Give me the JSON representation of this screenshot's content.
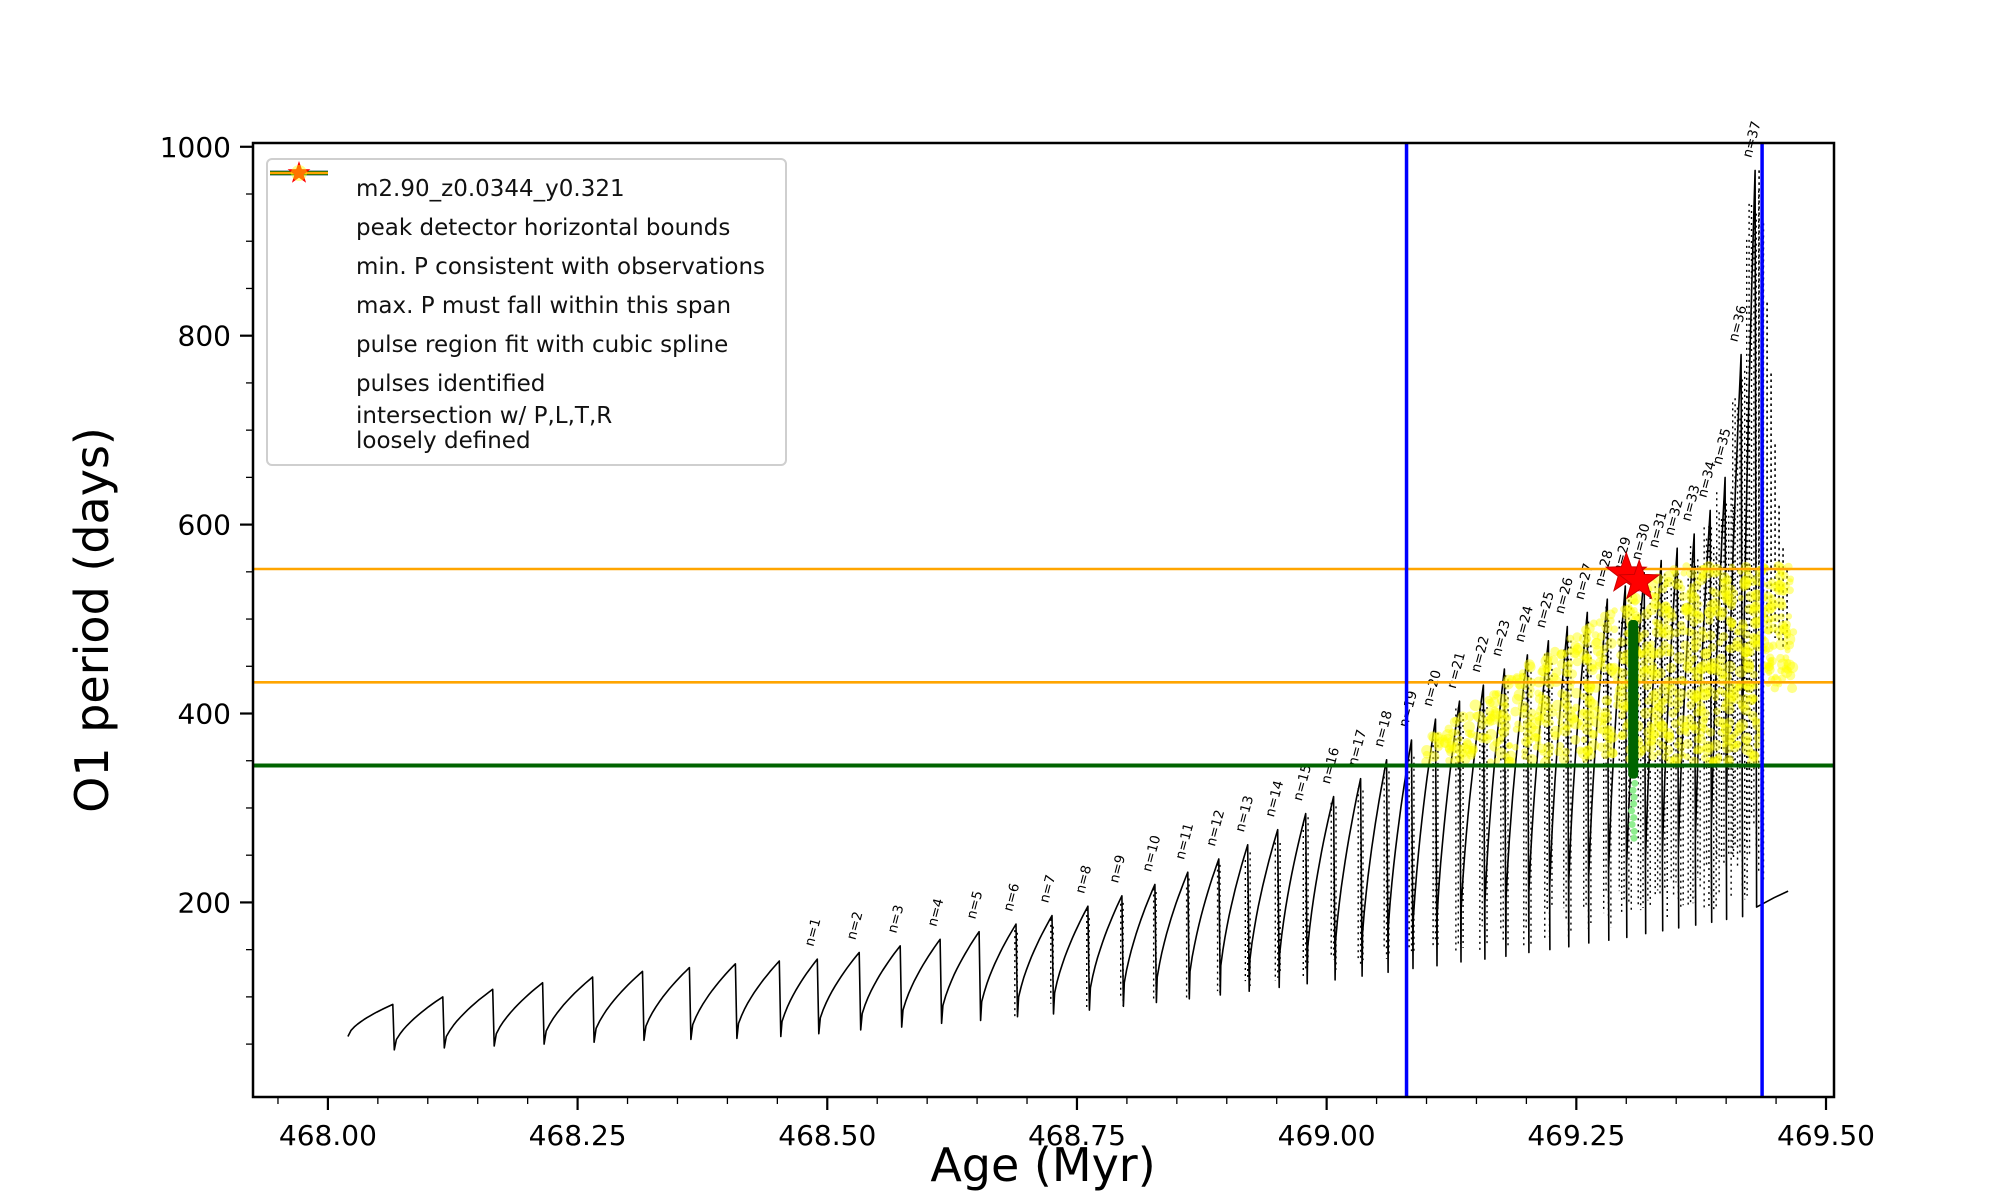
{
  "axes": {
    "xlabel": "Age (Myr)",
    "ylabel": "O1 period (days)",
    "xlim": [
      467.925,
      469.508
    ],
    "ylim": [
      -6,
      1004
    ],
    "x_ticks": [
      {
        "v": 468.0,
        "label": "468.00"
      },
      {
        "v": 468.25,
        "label": "468.25"
      },
      {
        "v": 468.5,
        "label": "468.50"
      },
      {
        "v": 468.75,
        "label": "468.75"
      },
      {
        "v": 469.0,
        "label": "469.00"
      },
      {
        "v": 469.25,
        "label": "469.25"
      },
      {
        "v": 469.5,
        "label": "469.50"
      }
    ],
    "y_ticks": [
      {
        "v": 200,
        "label": "200"
      },
      {
        "v": 400,
        "label": "400"
      },
      {
        "v": 600,
        "label": "600"
      },
      {
        "v": 800,
        "label": "800"
      },
      {
        "v": 1000,
        "label": "1000"
      }
    ],
    "minor_x_step": 0.05,
    "minor_y_step": 50
  },
  "legend": {
    "entries": [
      {
        "type": "line-dot",
        "color": "#000000",
        "label": "m2.90_z0.0344_y0.321"
      },
      {
        "type": "line",
        "color": "#0000ff",
        "label": "peak detector horizontal bounds"
      },
      {
        "type": "line",
        "color": "#006400",
        "label": "min. P consistent with observations"
      },
      {
        "type": "line",
        "color": "#ffa500",
        "label": "max. P must fall within this span"
      },
      {
        "type": "dot",
        "color": "#90ee90",
        "label": "pulse region fit with cubic spline"
      },
      {
        "type": "star",
        "color": "#ff0000",
        "label": "pulses identified"
      },
      {
        "type": "dot-faint",
        "color": "#ffff00",
        "label": "intersection w/ P,L,T,R",
        "label2": "loosely defined"
      }
    ]
  },
  "chart_data": {
    "type": "line",
    "title": "",
    "xlabel": "Age (Myr)",
    "ylabel": "O1 period (days)",
    "series_name": "m2.90_z0.0344_y0.321",
    "label_prefix": "n=",
    "pulses": [
      {
        "x": 468.065,
        "p": 92,
        "t": 58
      },
      {
        "x": 468.115,
        "p": 100,
        "t": 44
      },
      {
        "x": 468.165,
        "p": 108,
        "t": 46
      },
      {
        "x": 468.215,
        "p": 115,
        "t": 48
      },
      {
        "x": 468.265,
        "p": 121,
        "t": 50
      },
      {
        "x": 468.315,
        "p": 127,
        "t": 52
      },
      {
        "x": 468.362,
        "p": 131,
        "t": 54
      },
      {
        "x": 468.408,
        "p": 135,
        "t": 55
      },
      {
        "x": 468.452,
        "p": 138,
        "t": 56
      },
      {
        "n": 1,
        "x": 468.49,
        "p": 140,
        "t": 58
      },
      {
        "n": 2,
        "x": 468.532,
        "p": 147,
        "t": 61
      },
      {
        "n": 3,
        "x": 468.573,
        "p": 154,
        "t": 65
      },
      {
        "n": 4,
        "x": 468.613,
        "p": 161,
        "t": 68
      },
      {
        "n": 5,
        "x": 468.652,
        "p": 169,
        "t": 72
      },
      {
        "n": 6,
        "x": 468.689,
        "p": 177,
        "t": 75
      },
      {
        "n": 7,
        "x": 468.725,
        "p": 186,
        "t": 79
      },
      {
        "n": 8,
        "x": 468.761,
        "p": 196,
        "t": 82
      },
      {
        "n": 9,
        "x": 468.795,
        "p": 207,
        "t": 86
      },
      {
        "n": 10,
        "x": 468.828,
        "p": 219,
        "t": 90
      },
      {
        "n": 11,
        "x": 468.861,
        "p": 232,
        "t": 94
      },
      {
        "n": 12,
        "x": 468.892,
        "p": 246,
        "t": 98
      },
      {
        "n": 13,
        "x": 468.921,
        "p": 261,
        "t": 102
      },
      {
        "n": 14,
        "x": 468.951,
        "p": 277,
        "t": 106
      },
      {
        "n": 15,
        "x": 468.979,
        "p": 294,
        "t": 110
      },
      {
        "n": 16,
        "x": 469.007,
        "p": 312,
        "t": 114
      },
      {
        "n": 17,
        "x": 469.034,
        "p": 331,
        "t": 118
      },
      {
        "n": 18,
        "x": 469.06,
        "p": 351,
        "t": 122
      },
      {
        "n": 19,
        "x": 469.085,
        "p": 372,
        "t": 126
      },
      {
        "n": 20,
        "x": 469.109,
        "p": 394,
        "t": 130
      },
      {
        "n": 21,
        "x": 469.133,
        "p": 413,
        "t": 133
      },
      {
        "n": 22,
        "x": 469.157,
        "p": 430,
        "t": 137
      },
      {
        "n": 23,
        "x": 469.178,
        "p": 447,
        "t": 140
      },
      {
        "n": 24,
        "x": 469.201,
        "p": 462,
        "t": 143
      },
      {
        "n": 25,
        "x": 469.222,
        "p": 477,
        "t": 147
      },
      {
        "n": 26,
        "x": 469.241,
        "p": 492,
        "t": 150
      },
      {
        "n": 27,
        "x": 469.261,
        "p": 507,
        "t": 153
      },
      {
        "n": 28,
        "x": 469.281,
        "p": 521,
        "t": 157
      },
      {
        "n": 29,
        "x": 469.299,
        "p": 535,
        "t": 160
      },
      {
        "n": 30,
        "x": 469.318,
        "p": 549,
        "t": 163
      },
      {
        "n": 31,
        "x": 469.335,
        "p": 562,
        "t": 167
      },
      {
        "n": 32,
        "x": 469.351,
        "p": 575,
        "t": 170
      },
      {
        "n": 33,
        "x": 469.368,
        "p": 590,
        "t": 173
      },
      {
        "n": 34,
        "x": 469.384,
        "p": 615,
        "t": 176
      },
      {
        "n": 35,
        "x": 469.399,
        "p": 650,
        "t": 179
      },
      {
        "n": 36,
        "x": 469.415,
        "p": 780,
        "t": 182
      },
      {
        "n": 37,
        "x": 469.429,
        "p": 975,
        "t": 185
      }
    ],
    "tail_trough": 195,
    "tail_spikes": [
      {
        "x": 469.433,
        "top": 975,
        "bot": 520
      },
      {
        "x": 469.437,
        "top": 905,
        "bot": 500
      },
      {
        "x": 469.441,
        "top": 835,
        "bot": 490
      },
      {
        "x": 469.445,
        "top": 760,
        "bot": 485
      },
      {
        "x": 469.449,
        "top": 685,
        "bot": 480
      },
      {
        "x": 469.453,
        "top": 620,
        "bot": 475
      },
      {
        "x": 469.457,
        "top": 575,
        "bot": 468
      },
      {
        "x": 469.461,
        "top": 552,
        "bot": 470
      }
    ],
    "vlines_blue": [
      469.08,
      469.436
    ],
    "hline_green": 345,
    "hlines_orange": [
      433,
      553
    ],
    "stars": [
      {
        "x": 469.3,
        "y": 548
      },
      {
        "x": 469.313,
        "y": 540
      }
    ],
    "pulse_fit_bar": {
      "x": 469.307,
      "y0": 331,
      "y1": 499,
      "width": 10,
      "color": "#006400"
    },
    "spline_dots": {
      "x": 469.307,
      "y0": 268,
      "y1": 326,
      "count": 9,
      "color": "#90ee90"
    },
    "yellow": {
      "x0": 469.09,
      "x1": 469.465,
      "min": 348,
      "cap": 556,
      "right_min_x": 469.432,
      "right_min": 425,
      "count": 900,
      "color": "#ffff00"
    },
    "colors": {
      "series": "#000000",
      "bounds": "#0000ff",
      "min_p": "#006400",
      "max_p": "#ffa500",
      "spline": "#90ee90",
      "pulse": "#ff0000",
      "intersection": "#ffff00"
    }
  }
}
